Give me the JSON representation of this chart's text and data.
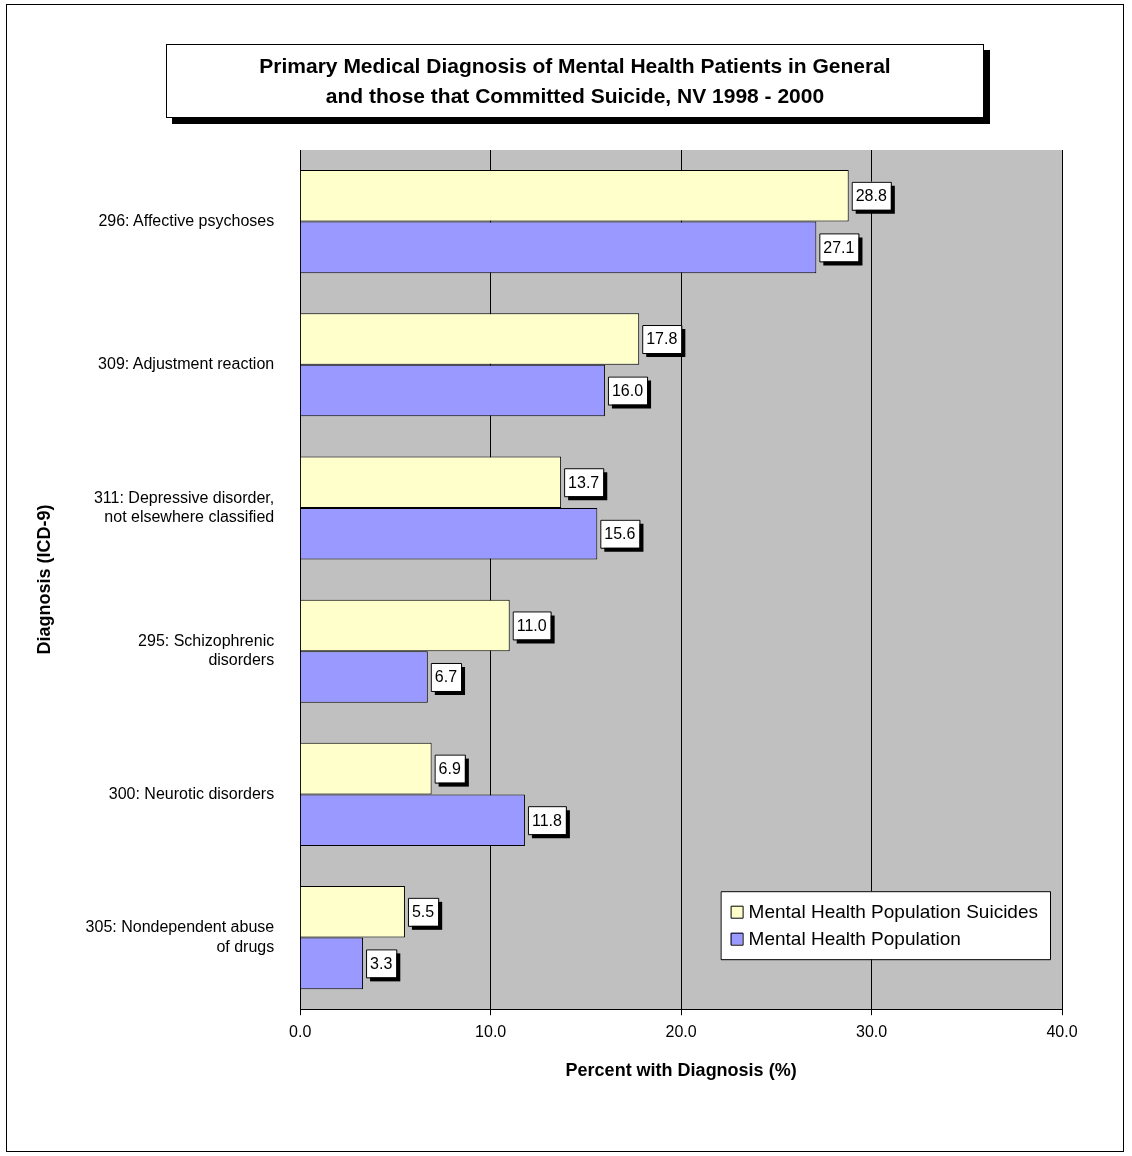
{
  "chart_data": {
    "type": "bar",
    "orientation": "horizontal",
    "title": "Primary Medical Diagnosis of Mental Health Patients in General\nand those that Committed Suicide, NV 1998 - 2000",
    "xlabel": "Percent with Diagnosis (%)",
    "ylabel": "Diagnosis (ICD-9)",
    "categories": [
      "296: Affective psychoses",
      "309: Adjustment reaction",
      "311: Depressive disorder,\nnot elsewhere classified",
      "295: Schizophrenic\ndisorders",
      "300: Neurotic disorders",
      "305: Nondependent abuse\nof drugs"
    ],
    "series": [
      {
        "name": "Mental Health Population Suicides",
        "color": "#ffffcc",
        "values": [
          28.8,
          17.8,
          13.7,
          11.0,
          6.9,
          5.5
        ],
        "value_labels": [
          "28.8",
          "17.8",
          "13.7",
          "11.0",
          "6.9",
          "5.5"
        ]
      },
      {
        "name": "Mental Health Population",
        "color": "#9999ff",
        "values": [
          27.1,
          16.0,
          15.6,
          6.7,
          11.8,
          3.3
        ],
        "value_labels": [
          "27.1",
          "16.0",
          "15.6",
          "6.7",
          "11.8",
          "3.3"
        ]
      }
    ],
    "xlim": [
      0,
      40
    ],
    "xticks": [
      {
        "value": 0,
        "label": "0.0"
      },
      {
        "value": 10,
        "label": "10.0"
      },
      {
        "value": 20,
        "label": "20.0"
      },
      {
        "value": 30,
        "label": "30.0"
      },
      {
        "value": 40,
        "label": "40.0"
      }
    ],
    "grid": "x",
    "legend": "bottom right"
  }
}
